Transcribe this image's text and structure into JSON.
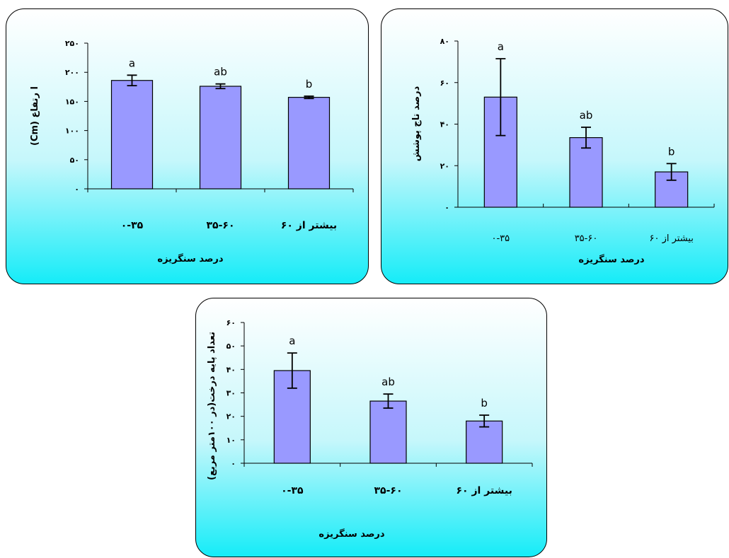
{
  "chart_data": [
    {
      "type": "bar",
      "categories": [
        "۰-۳۵",
        "۳۵-۶۰",
        "بیشتر از ۶۰"
      ],
      "values": [
        186,
        176,
        157
      ],
      "errors": [
        9,
        4,
        2
      ],
      "significance": [
        "a",
        "ab",
        "b"
      ],
      "ylabel": "ا رتفاع (Cm)",
      "xlabel": "درصد سنگریزه",
      "ylim": [
        0,
        250
      ],
      "yticks": [
        0,
        50,
        100,
        150,
        200,
        250
      ],
      "ytick_labels": [
        "۰",
        "۵۰",
        "۱۰۰",
        "۱۵۰",
        "۲۰۰",
        "۲۵۰"
      ],
      "bar_color": "#9999ff"
    },
    {
      "type": "bar",
      "categories": [
        "۰-۳۵",
        "۳۵-۶۰",
        "بیشتر از ۶۰"
      ],
      "values": [
        53,
        33.5,
        17
      ],
      "errors": [
        18.5,
        5,
        4
      ],
      "significance": [
        "a",
        "ab",
        "b"
      ],
      "ylabel": "درصد تاج پوشش",
      "xlabel": "درصد سنگریزه",
      "ylim": [
        0,
        80
      ],
      "yticks": [
        0,
        20,
        40,
        60,
        80
      ],
      "ytick_labels": [
        "۰",
        "۲۰",
        "۴۰",
        "۶۰",
        "۸۰"
      ],
      "bar_color": "#9999ff"
    },
    {
      "type": "bar",
      "categories": [
        "۰-۳۵",
        "۳۵-۶۰",
        "بیشتر از ۶۰"
      ],
      "values": [
        39.5,
        26.5,
        18
      ],
      "errors": [
        7.5,
        3,
        2.5
      ],
      "significance": [
        "a",
        "ab",
        "b"
      ],
      "ylabel": "تعداد پایه درخت(در ۱۰۰متر مربع)",
      "xlabel": "درصد سنگریزه",
      "ylim": [
        0,
        60
      ],
      "yticks": [
        0,
        10,
        20,
        30,
        40,
        50,
        60
      ],
      "ytick_labels": [
        "۰",
        "۱۰",
        "۲۰",
        "۳۰",
        "۴۰",
        "۵۰",
        "۶۰"
      ],
      "bar_color": "#9999ff"
    }
  ]
}
